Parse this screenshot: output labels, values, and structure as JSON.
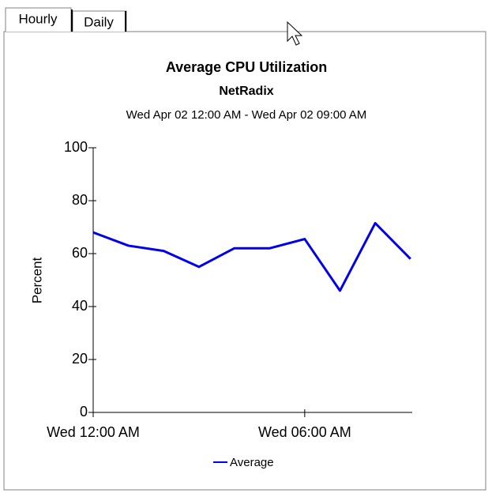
{
  "tabs": [
    "Hourly",
    "Daily"
  ],
  "chart_data": {
    "type": "line",
    "title": "Average CPU Utilization",
    "subtitle": "NetRadix",
    "date_range": "Wed Apr 02 12:00 AM - Wed Apr 02 09:00 AM",
    "ylabel": "Percent",
    "x": [
      0,
      1,
      2,
      3,
      4,
      5,
      6,
      7,
      8,
      9
    ],
    "series": [
      {
        "name": "Average",
        "color": "#0000ee",
        "values": [
          68,
          63,
          61,
          55,
          62,
          62,
          65.5,
          46,
          71.5,
          58
        ]
      }
    ],
    "xlim": [
      0,
      9.05
    ],
    "xticks": [
      {
        "value": 0,
        "label": "Wed 12:00 AM"
      },
      {
        "value": 6,
        "label": "Wed 06:00 AM"
      }
    ],
    "ylim": [
      0,
      100
    ],
    "yticks": [
      0,
      20,
      40,
      60,
      80,
      100
    ]
  }
}
